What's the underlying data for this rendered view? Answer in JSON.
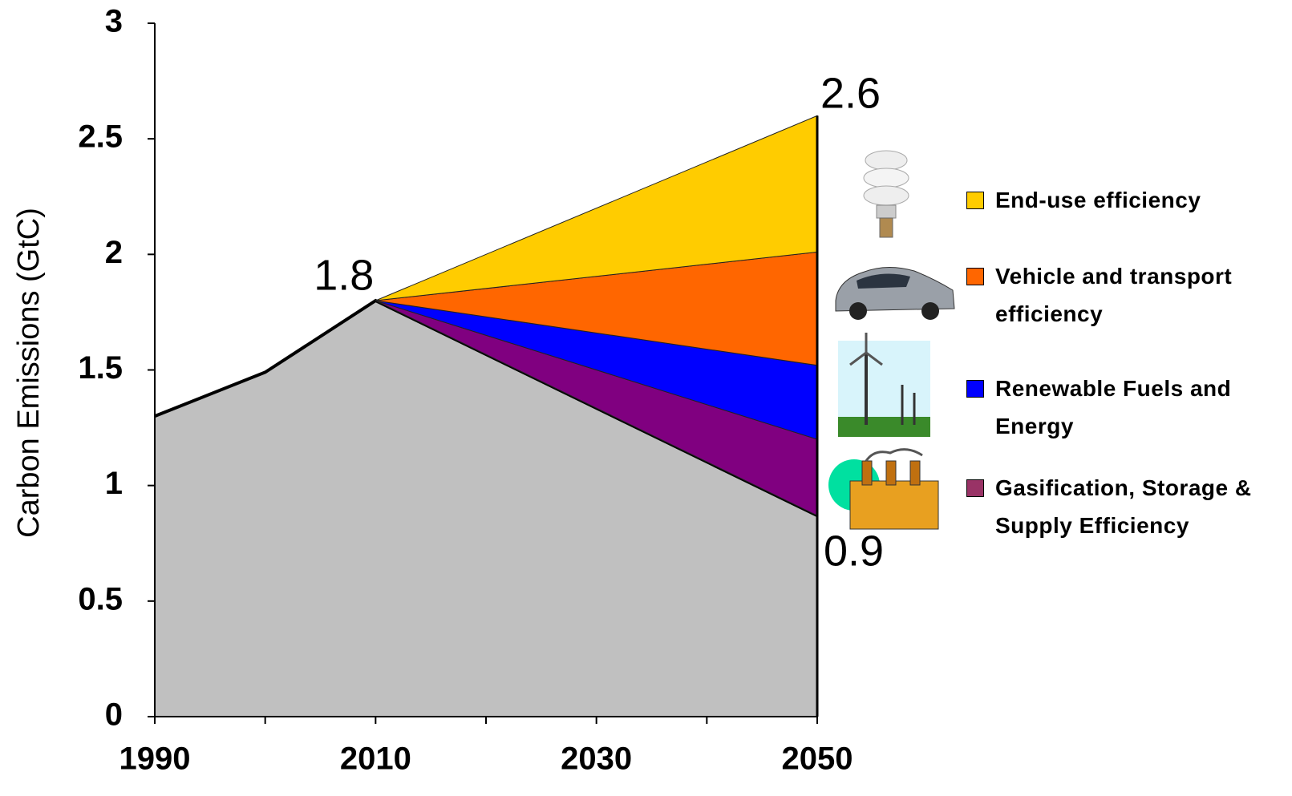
{
  "chart_data": {
    "type": "stacked_area",
    "y_axis_label": "Carbon Emissions (GtC)",
    "x": [
      1990,
      2000,
      2010,
      2050
    ],
    "series": [
      {
        "color": "#c0c0c0",
        "values": [
          1.3,
          1.49,
          1.8,
          0.87
        ]
      },
      {
        "name": "Gasification, Storage & Supply Efficiency",
        "color": "#800080",
        "legend_color": "#993366",
        "values": [
          null,
          null,
          0,
          0.33
        ]
      },
      {
        "name": "Renewable Fuels and Energy",
        "color": "#0000ff",
        "values": [
          null,
          null,
          0,
          0.32
        ]
      },
      {
        "name": "Vehicle and transport efficiency",
        "color": "#ff6600",
        "values": [
          null,
          null,
          0,
          0.49
        ]
      },
      {
        "name": "End-use efficiency",
        "color": "#ffcc00",
        "values": [
          null,
          null,
          0,
          0.59
        ]
      }
    ],
    "annotations": [
      {
        "label": "1.8",
        "x": 2010,
        "value": 1.8
      },
      {
        "label": "2.6",
        "x": 2050,
        "value": 2.6
      },
      {
        "label": "0.9",
        "x": 2050,
        "value": 0.87
      }
    ],
    "xlim": [
      1990,
      2050
    ],
    "xticks": [
      1990,
      2010,
      2030,
      2050
    ],
    "xminor_ticks": [
      2000,
      2020,
      2040
    ],
    "ylim": [
      0,
      3
    ],
    "yticks": [
      0,
      0.5,
      1,
      1.5,
      2,
      2.5,
      3
    ]
  }
}
